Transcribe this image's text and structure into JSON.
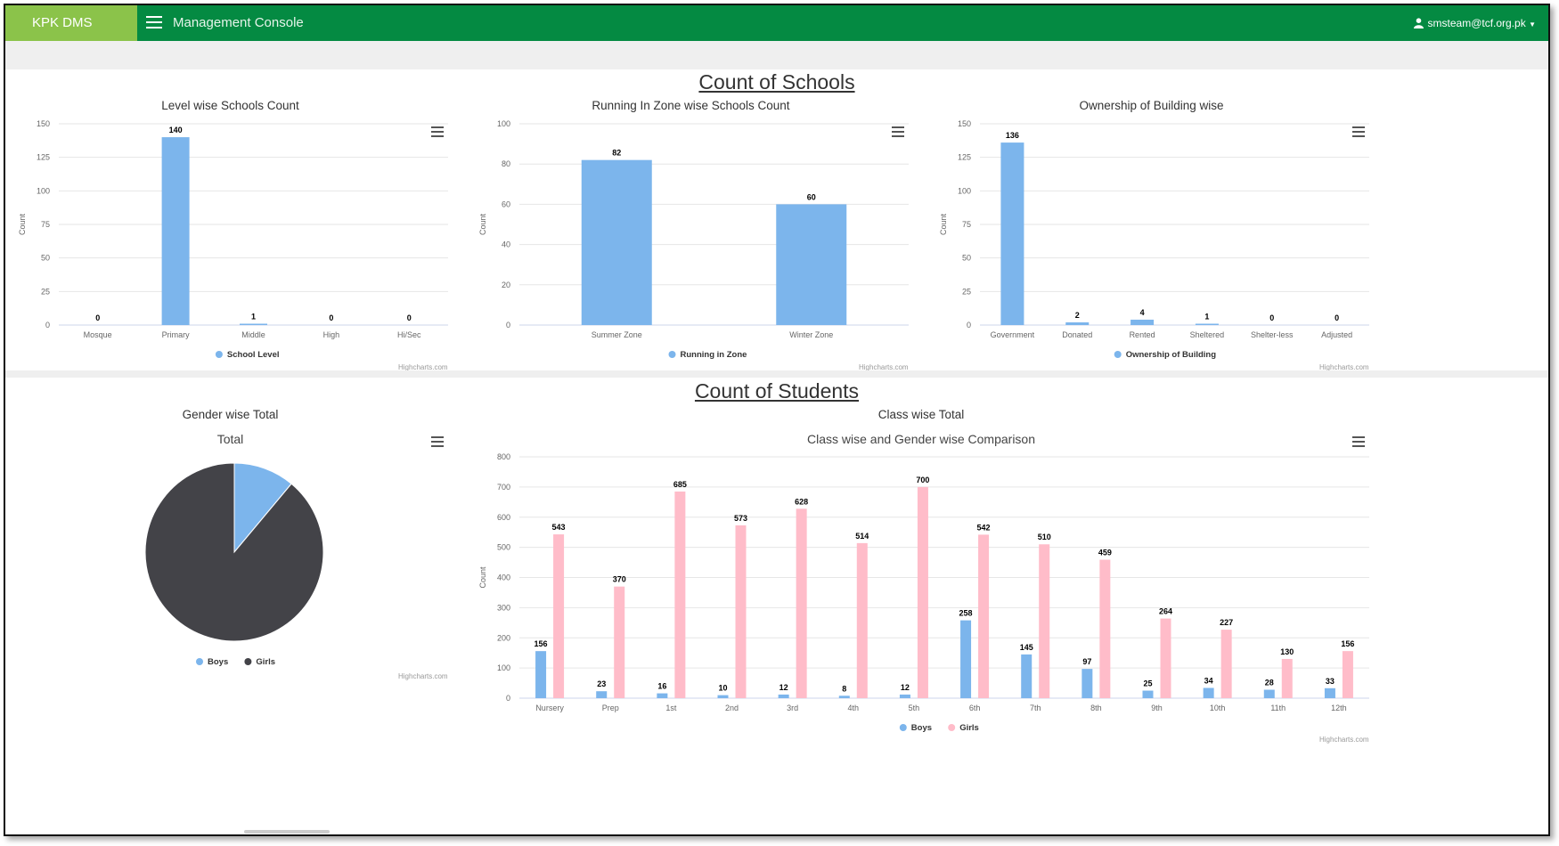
{
  "header": {
    "brand": "KPK DMS",
    "title": "Management Console",
    "user": "smsteam@tcf.org.pk"
  },
  "schools_section": {
    "title": "Count of Schools"
  },
  "students_section": {
    "title": "Count of Students"
  },
  "credit_text": "Highcharts.com",
  "colors": {
    "topbar": "#048a42",
    "brand": "#8bc34a",
    "blue": "#7cb5ec",
    "dark": "#434348",
    "pink": "#ffbcc9"
  },
  "chart_data": [
    {
      "id": "level",
      "type": "bar",
      "title": "Level wise Schools Count",
      "ylabel": "Count",
      "categories": [
        "Mosque",
        "Primary",
        "Middle",
        "High",
        "Hi/Sec"
      ],
      "series": [
        {
          "name": "School Level",
          "values": [
            0,
            140,
            1,
            0,
            0
          ],
          "color": "#7cb5ec"
        }
      ],
      "ylim": [
        0,
        150
      ],
      "yticks": [
        0,
        25,
        50,
        75,
        100,
        125,
        150
      ],
      "grid": true,
      "legend": "bottom-center"
    },
    {
      "id": "zone",
      "type": "bar",
      "title": "Running In Zone wise Schools Count",
      "ylabel": "Count",
      "categories": [
        "Summer Zone",
        "Winter Zone"
      ],
      "series": [
        {
          "name": "Running in Zone",
          "values": [
            82,
            60
          ],
          "color": "#7cb5ec"
        }
      ],
      "ylim": [
        0,
        100
      ],
      "yticks": [
        0,
        20,
        40,
        60,
        80,
        100
      ],
      "grid": true,
      "legend": "bottom-center"
    },
    {
      "id": "ownership",
      "type": "bar",
      "title": "Ownership of Building wise",
      "ylabel": "Count",
      "categories": [
        "Government",
        "Donated",
        "Rented",
        "Sheltered",
        "Shelter-less",
        "Adjusted"
      ],
      "series": [
        {
          "name": "Ownership of Building",
          "values": [
            136,
            2,
            4,
            1,
            0,
            0
          ],
          "color": "#7cb5ec"
        }
      ],
      "ylim": [
        0,
        150
      ],
      "yticks": [
        0,
        25,
        50,
        75,
        100,
        125,
        150
      ],
      "grid": true,
      "legend": "bottom-center"
    },
    {
      "id": "gender",
      "type": "pie",
      "title": "Gender wise Total",
      "subtitle": "Total",
      "slices": [
        {
          "name": "Boys",
          "value": 837,
          "color": "#7cb5ec"
        },
        {
          "name": "Girls",
          "value": 6721,
          "color": "#434348"
        }
      ],
      "legend": "bottom-center"
    },
    {
      "id": "class",
      "type": "bar",
      "title": "Class wise Total",
      "subtitle": "Class wise and Gender wise Comparison",
      "ylabel": "Count",
      "categories": [
        "Nursery",
        "Prep",
        "1st",
        "2nd",
        "3rd",
        "4th",
        "5th",
        "6th",
        "7th",
        "8th",
        "9th",
        "10th",
        "11th",
        "12th"
      ],
      "series": [
        {
          "name": "Boys",
          "values": [
            156,
            23,
            16,
            10,
            12,
            8,
            12,
            258,
            145,
            97,
            25,
            34,
            28,
            33
          ],
          "color": "#7cb5ec"
        },
        {
          "name": "Girls",
          "values": [
            543,
            370,
            685,
            573,
            628,
            514,
            700,
            542,
            510,
            459,
            264,
            227,
            130,
            156
          ],
          "color": "#ffbcc9"
        }
      ],
      "ylim": [
        0,
        800
      ],
      "yticks": [
        0,
        100,
        200,
        300,
        400,
        500,
        600,
        700,
        800
      ],
      "grid": true,
      "legend": "bottom-center"
    }
  ]
}
